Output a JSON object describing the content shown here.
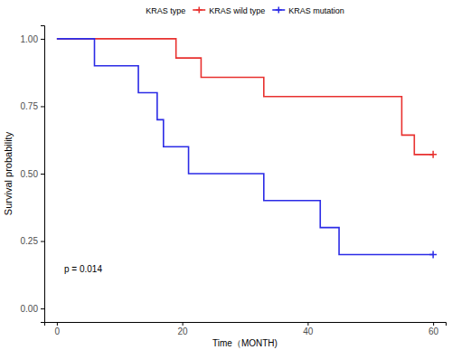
{
  "chart_data": {
    "type": "step",
    "legend_title": "KRAS type",
    "x_label": "Time（MONTH)",
    "y_label": "Survival probability",
    "annotations": [
      "p = 0.014"
    ],
    "xlim": [
      -2,
      62
    ],
    "xticks": [
      0,
      20,
      40,
      60
    ],
    "ylim": [
      -0.05,
      1.05
    ],
    "yticks": [
      {
        "value": 0,
        "label": "0.00"
      },
      {
        "value": 0.25,
        "label": "0.25"
      },
      {
        "value": 0.5,
        "label": "0.50"
      },
      {
        "value": 0.75,
        "label": "0.75"
      },
      {
        "value": 1,
        "label": "1.00"
      }
    ],
    "grid": false,
    "legend": "top",
    "series": [
      {
        "name": "KRAS wild type",
        "color": "#e8312f",
        "x": [
          0,
          19,
          23,
          33,
          55,
          57,
          60
        ],
        "values": [
          1,
          0.929,
          0.857,
          0.786,
          0.643,
          0.571,
          0.571
        ],
        "censor_x": [
          60
        ],
        "censor_values": [
          0.571
        ]
      },
      {
        "name": "KRAS mutation",
        "color": "#2b2be6",
        "x": [
          0,
          6,
          13,
          16,
          17,
          21,
          33,
          42,
          45,
          60
        ],
        "values": [
          1,
          0.9,
          0.8,
          0.7,
          0.6,
          0.5,
          0.4,
          0.3,
          0.2,
          0.2
        ],
        "censor_x": [
          60
        ],
        "censor_values": [
          0.2
        ]
      }
    ]
  }
}
